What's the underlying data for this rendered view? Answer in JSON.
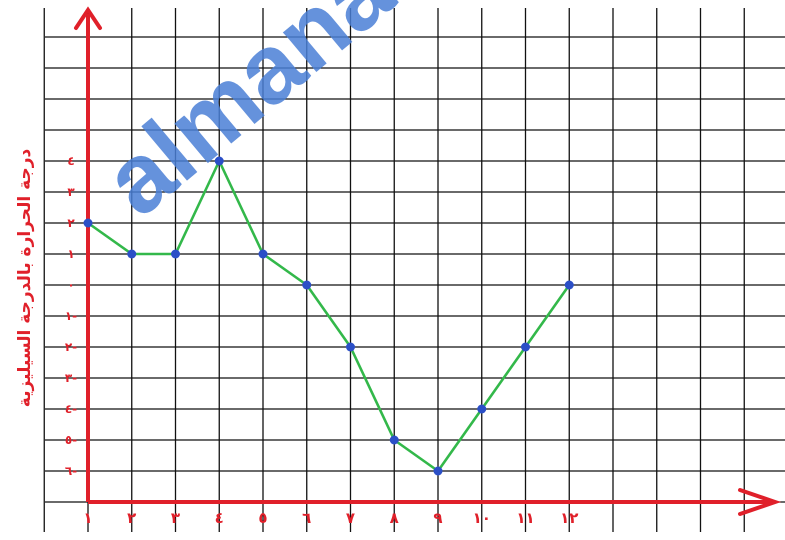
{
  "chart_data": {
    "type": "line",
    "title": "",
    "xlabel": "",
    "ylabel": "درجة الحرارة بالدرجة السيليزية",
    "x_tick_labels": [
      "١",
      "٢",
      "٣",
      "٤",
      "٥",
      "٦",
      "٧",
      "٨",
      "٩",
      "١٠",
      "١١",
      "١٢"
    ],
    "y_tick_labels": [
      "٦-",
      "٥-",
      "٤-",
      "٣-",
      "٢-",
      "١-",
      "٠",
      "١",
      "٢",
      "٣",
      "٤"
    ],
    "x": [
      1,
      2,
      3,
      4,
      5,
      6,
      7,
      8,
      9,
      10,
      11,
      12
    ],
    "series": [
      {
        "values": [
          2,
          1,
          1,
          4,
          1,
          0,
          -2,
          -5,
          -6,
          -4,
          -2,
          0
        ]
      }
    ],
    "xlim": [
      1,
      16
    ],
    "ylim": [
      -7,
      9
    ],
    "grid": true,
    "colors": {
      "line": "#33b84a",
      "markers": "#2b4fc7",
      "axes": "#e0202a",
      "grid": "#111111",
      "tick_labels": "#e0202a",
      "watermark": "#4a7fd6"
    }
  },
  "watermark": "almanahj"
}
